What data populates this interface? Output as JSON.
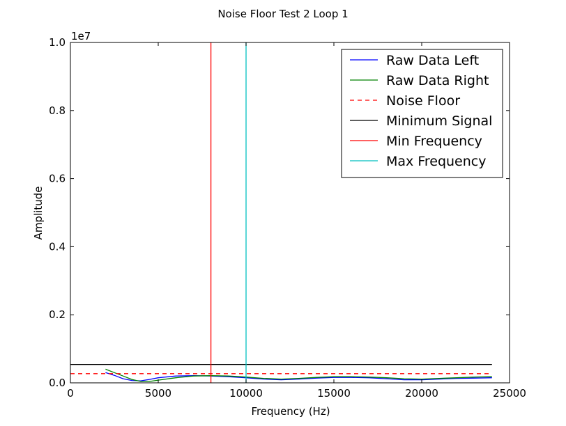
{
  "chart_data": {
    "type": "line",
    "title": "Noise Floor Test 2 Loop 1",
    "xlabel": "Frequency (Hz)",
    "ylabel": "Amplitude",
    "y_offset_label": "1e7",
    "xlim": [
      0,
      25000
    ],
    "ylim": [
      0,
      1.0
    ],
    "xticks": [
      0,
      5000,
      10000,
      15000,
      20000,
      25000
    ],
    "xtick_labels": [
      "0",
      "5000",
      "10000",
      "15000",
      "20000",
      "25000"
    ],
    "yticks": [
      0.0,
      0.2,
      0.4,
      0.6,
      0.8,
      1.0
    ],
    "ytick_labels": [
      "0.0",
      "0.2",
      "0.4",
      "0.6",
      "0.8",
      "1.0"
    ],
    "grid": false,
    "legend_position": "top-right",
    "series": [
      {
        "name": "Raw Data Left",
        "color": "#0000ff",
        "style": "solid",
        "x": [
          2000,
          2500,
          3000,
          3500,
          4000,
          4500,
          5000,
          6000,
          7000,
          8000,
          9000,
          10000,
          11000,
          12000,
          13000,
          14000,
          15000,
          16000,
          17000,
          18000,
          19000,
          20000,
          21000,
          22000,
          23000,
          24000
        ],
        "y": [
          0.03,
          0.022,
          0.012,
          0.007,
          0.006,
          0.01,
          0.015,
          0.02,
          0.021,
          0.02,
          0.018,
          0.015,
          0.011,
          0.009,
          0.011,
          0.014,
          0.016,
          0.016,
          0.015,
          0.012,
          0.009,
          0.009,
          0.011,
          0.013,
          0.014,
          0.015
        ]
      },
      {
        "name": "Raw Data Right",
        "color": "#008000",
        "style": "solid",
        "x": [
          2000,
          2500,
          3000,
          3500,
          4000,
          4500,
          5000,
          6000,
          7000,
          8000,
          9000,
          10000,
          11000,
          12000,
          13000,
          14000,
          15000,
          16000,
          17000,
          18000,
          19000,
          20000,
          21000,
          22000,
          23000,
          24000
        ],
        "y": [
          0.04,
          0.03,
          0.02,
          0.01,
          0.004,
          0.004,
          0.008,
          0.015,
          0.02,
          0.021,
          0.02,
          0.017,
          0.013,
          0.011,
          0.013,
          0.016,
          0.018,
          0.018,
          0.017,
          0.015,
          0.012,
          0.011,
          0.013,
          0.015,
          0.017,
          0.018
        ]
      },
      {
        "name": "Noise Floor",
        "color": "#ff0000",
        "style": "dashed",
        "x": [
          0,
          24000
        ],
        "y": [
          0.027,
          0.027
        ]
      },
      {
        "name": "Minimum Signal",
        "color": "#000000",
        "style": "solid",
        "x": [
          0,
          24000
        ],
        "y": [
          0.054,
          0.054
        ]
      },
      {
        "name": "Min Frequency",
        "color": "#ff0000",
        "style": "solid",
        "x": [
          8000,
          8000
        ],
        "y": [
          0,
          1.0
        ]
      },
      {
        "name": "Max Frequency",
        "color": "#00bfbf",
        "style": "solid",
        "x": [
          10000,
          10000
        ],
        "y": [
          0,
          1.0
        ]
      }
    ]
  }
}
